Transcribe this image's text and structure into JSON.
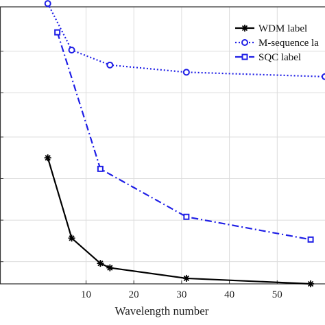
{
  "chart_data": {
    "type": "line",
    "xlabel": "Wavelength number",
    "ylabel": "",
    "xlim": [
      -8,
      60
    ],
    "ylim": [
      0,
      1
    ],
    "x_ticks": [
      10,
      20,
      30,
      40,
      50
    ],
    "y_ticks": [
      0.08,
      0.23,
      0.38,
      0.53,
      0.69,
      0.84,
      1.0
    ],
    "grid": true,
    "legend_position": "top-right",
    "series": [
      {
        "name": "WDM label",
        "color": "#000000",
        "line_style": "solid",
        "marker": "star",
        "x": [
          2,
          7,
          13,
          15,
          31,
          57
        ],
        "y": [
          0.455,
          0.165,
          0.074,
          0.058,
          0.02,
          0.0
        ]
      },
      {
        "name": "M-sequence la",
        "color": "#1f1fe6",
        "line_style": "dotted",
        "marker": "circle",
        "x": [
          2,
          7,
          15,
          31,
          60
        ],
        "y": [
          1.012,
          0.844,
          0.79,
          0.764,
          0.748
        ]
      },
      {
        "name": "SQC label",
        "color": "#1f1fe6",
        "line_style": "dashdot",
        "marker": "square",
        "x": [
          4,
          13,
          31,
          57
        ],
        "y": [
          0.908,
          0.415,
          0.242,
          0.16
        ]
      }
    ]
  }
}
